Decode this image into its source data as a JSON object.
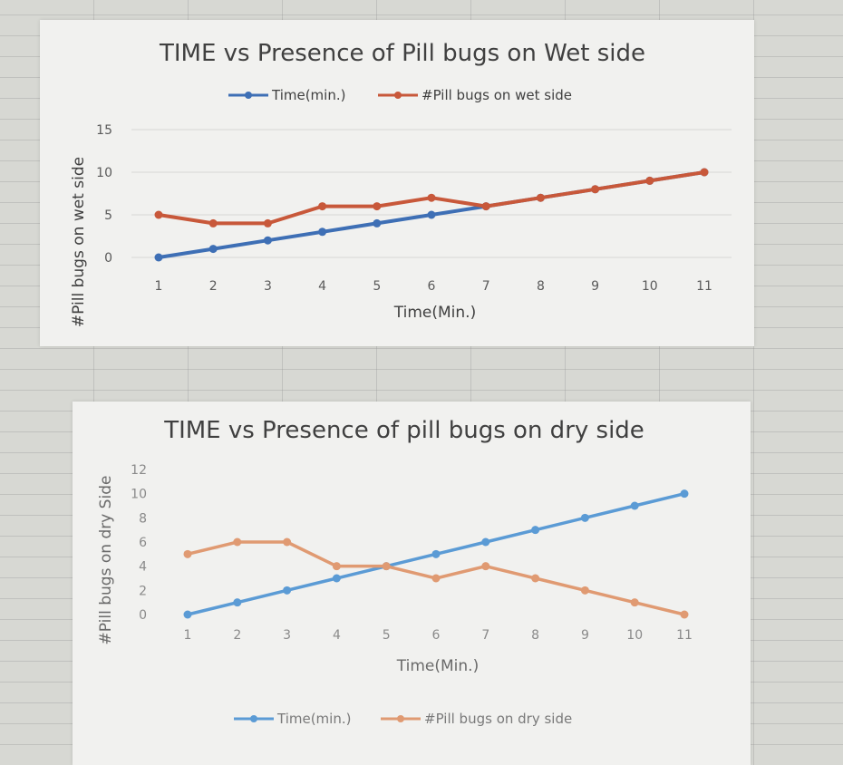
{
  "chart_data": [
    {
      "type": "line",
      "title": "TIME vs Presence of Pill bugs on Wet side",
      "xlabel": "Time(Min.)",
      "ylabel": "#Pill bugs on wet side",
      "categories": [
        "1",
        "2",
        "3",
        "4",
        "5",
        "6",
        "7",
        "8",
        "9",
        "10",
        "11"
      ],
      "ylim": [
        0,
        15
      ],
      "yticks": [
        "0",
        "5",
        "10",
        "15"
      ],
      "grid": true,
      "legend": "top",
      "series": [
        {
          "name": "Time(min.)",
          "color": "#3e6fb5",
          "values": [
            0,
            1,
            2,
            3,
            4,
            5,
            6,
            7,
            8,
            9,
            10
          ]
        },
        {
          "name": "#Pill bugs on wet side",
          "color": "#c8583a",
          "values": [
            5,
            4,
            4,
            6,
            6,
            7,
            6,
            7,
            8,
            9,
            10
          ]
        }
      ]
    },
    {
      "type": "line",
      "title": "TIME vs Presence of pill bugs on dry side",
      "xlabel": "Time(Min.)",
      "ylabel": "#Pill bugs on dry Side",
      "categories": [
        "1",
        "2",
        "3",
        "4",
        "5",
        "6",
        "7",
        "8",
        "9",
        "10",
        "11"
      ],
      "ylim": [
        0,
        12
      ],
      "yticks": [
        "0",
        "2",
        "4",
        "6",
        "8",
        "10",
        "12"
      ],
      "grid": false,
      "legend": "bottom",
      "series": [
        {
          "name": "Time(min.)",
          "color": "#5b9bd5",
          "values": [
            0,
            1,
            2,
            3,
            4,
            5,
            6,
            7,
            8,
            9,
            10
          ]
        },
        {
          "name": "#Pill bugs on dry side",
          "color": "#e09a72",
          "values": [
            5,
            6,
            6,
            4,
            4,
            3,
            4,
            3,
            2,
            1,
            0
          ]
        }
      ]
    }
  ]
}
